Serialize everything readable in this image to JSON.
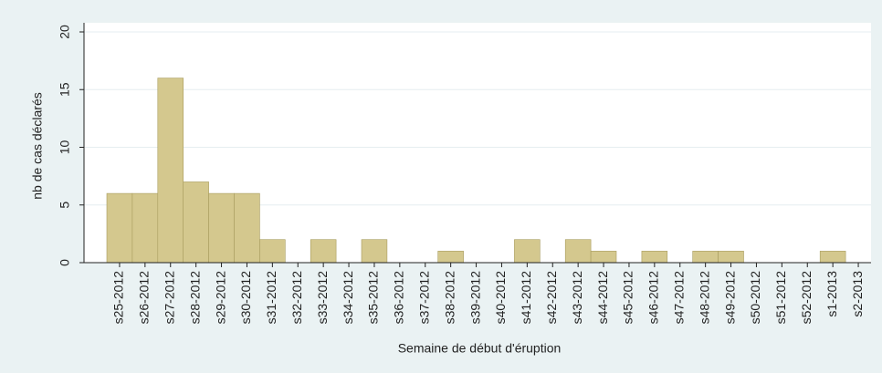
{
  "chart_data": {
    "type": "bar",
    "x_label": "Semaine de début d'éruption",
    "y_label": "nb de cas déclarés",
    "categories": [
      "s25-2012",
      "s26-2012",
      "s27-2012",
      "s28-2012",
      "s29-2012",
      "s30-2012",
      "s31-2012",
      "s32-2012",
      "s33-2012",
      "s34-2012",
      "s35-2012",
      "s36-2012",
      "s37-2012",
      "s38-2012",
      "s39-2012",
      "s40-2012",
      "s41-2012",
      "s42-2012",
      "s43-2012",
      "s44-2012",
      "s45-2012",
      "s46-2012",
      "s47-2012",
      "s48-2012",
      "s49-2012",
      "s50-2012",
      "s51-2012",
      "s52-2012",
      "s1-2013",
      "s2-2013"
    ],
    "values": [
      6,
      6,
      16,
      7,
      6,
      6,
      2,
      0,
      2,
      0,
      2,
      0,
      0,
      1,
      0,
      0,
      2,
      0,
      2,
      1,
      0,
      1,
      0,
      1,
      1,
      0,
      0,
      0,
      1,
      0
    ],
    "color": "#d4c88e",
    "ylim": [
      0,
      20
    ],
    "yticks": [
      0,
      5,
      10,
      15,
      20
    ],
    "grid": true
  }
}
